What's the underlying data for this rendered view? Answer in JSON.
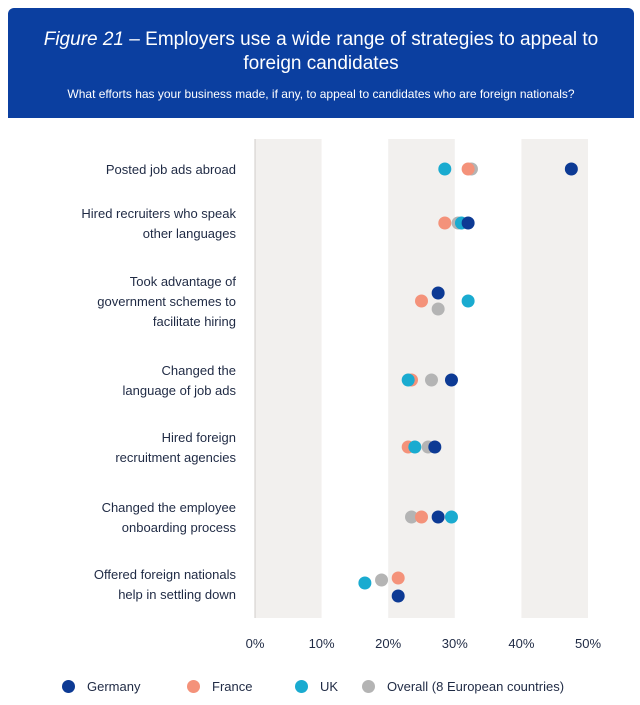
{
  "header": {
    "figure_label": "Figure 21",
    "title_rest": " – Employers use a wide range of strategies to appeal to foreign candidates",
    "subtitle": "What efforts has your business made, if any, to appeal to candidates who are foreign nationals?"
  },
  "chart_data": {
    "type": "scatter",
    "title": "Figure 21 – Employers use a wide range of strategies to appeal to foreign candidates",
    "subtitle": "What efforts has your business made, if any, to appeal to candidates who are foreign nationals?",
    "categories": [
      [
        "Posted job ads abroad"
      ],
      [
        "Hired recruiters who speak",
        "other languages"
      ],
      [
        "Took advantage of",
        "government schemes to",
        "facilitate hiring"
      ],
      [
        "Changed the",
        "language of job ads"
      ],
      [
        "Hired foreign",
        "recruitment agencies"
      ],
      [
        "Changed the employee",
        "onboarding process"
      ],
      [
        "Offered foreign nationals",
        "help in settling down"
      ]
    ],
    "xlim": [
      0,
      50
    ],
    "xticks": [
      0,
      10,
      20,
      30,
      40,
      50
    ],
    "xtick_labels": [
      "0%",
      "10%",
      "20%",
      "30%",
      "40%",
      "50%"
    ],
    "banded_background": true,
    "legend_position": "bottom",
    "series": [
      {
        "name": "Overall (8 European countries)",
        "color": "#b4b4b4",
        "values": [
          32.5,
          30.5,
          27.5,
          26.5,
          26,
          23.5,
          19
        ]
      },
      {
        "name": "France",
        "color": "#f4927a",
        "values": [
          32,
          28.5,
          25,
          23.5,
          23,
          25,
          21.5
        ]
      },
      {
        "name": "UK",
        "color": "#1aabd0",
        "values": [
          28.5,
          31,
          32,
          23,
          24,
          29.5,
          16.5
        ]
      },
      {
        "name": "Germany",
        "color": "#0d3a94",
        "values": [
          47.5,
          32,
          27.5,
          29.5,
          27,
          27.5,
          21.5
        ]
      }
    ],
    "legend_order": [
      "Germany",
      "France",
      "UK",
      "Overall (8 European countries)"
    ]
  }
}
